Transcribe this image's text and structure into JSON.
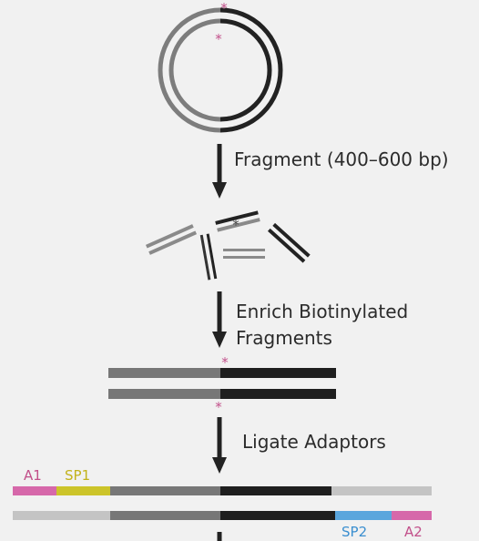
{
  "steps": {
    "fragment": "Fragment (400–600 bp)",
    "enrich_line1": "Enrich Biotinylated",
    "enrich_line2": "Fragments",
    "ligate": "Ligate Adaptors"
  },
  "biotin_mark": "*",
  "adaptors": {
    "a1": "A1",
    "sp1": "SP1",
    "sp2": "SP2",
    "a2": "A2"
  },
  "colors": {
    "background": "#f1f1f1",
    "dna_dark": "#1f1f1f",
    "dna_mid": "#777777",
    "dna_light": "#c4c4c4",
    "biotin": "#c2508a",
    "a1_a2": "#d668aa",
    "sp1": "#ccc42a",
    "sp2": "#5aa6dd",
    "label_a": "#c2508a",
    "label_sp1": "#c2b21a",
    "label_sp2": "#3b8fd0"
  }
}
